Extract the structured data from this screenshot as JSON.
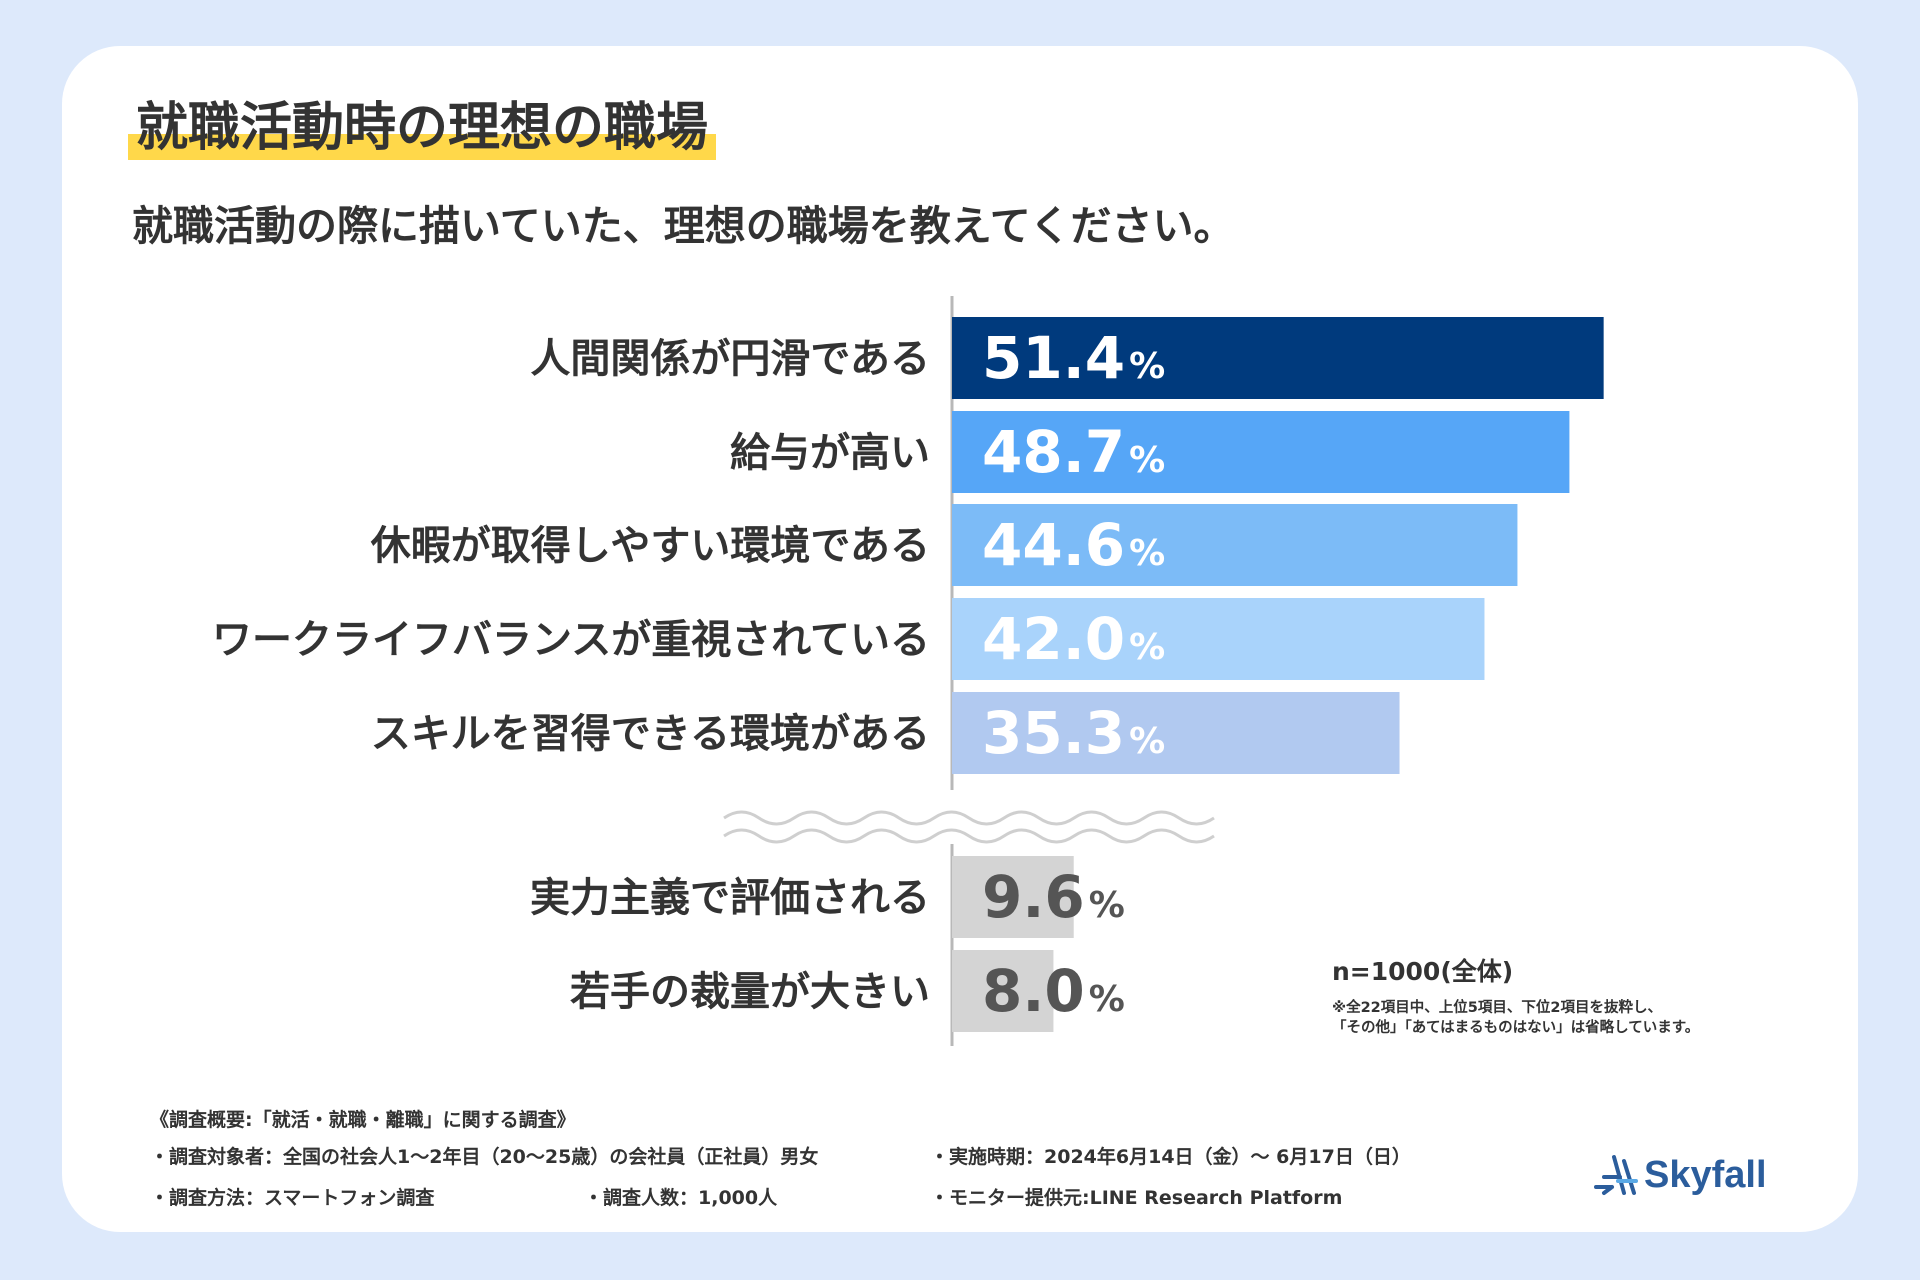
{
  "title": "就職活動時の理想の職場",
  "question": "就職活動の際に描いていた、理想の職場を教えてください。",
  "chart_data": {
    "type": "bar",
    "orientation": "horizontal",
    "unit": "%",
    "axis_break_after_index": 4,
    "categories": [
      "人間関係が円滑である",
      "給与が高い",
      "休暇が取得しやすい環境である",
      "ワークライフバランスが重視されている",
      "スキルを習得できる環境がある",
      "実力主義で評価される",
      "若手の裁量が大きい"
    ],
    "values": [
      51.4,
      48.7,
      44.6,
      42.0,
      35.3,
      9.6,
      8.0
    ],
    "value_labels": [
      "51.4",
      "48.7",
      "44.6",
      "42.0",
      "35.3",
      "9.6",
      "8.0"
    ],
    "colors": [
      "#003a7d",
      "#56a6f7",
      "#7cbbf7",
      "#a9d3fb",
      "#b1c9f0",
      "#d4d4d4",
      "#d4d4d4"
    ],
    "label_colors": [
      "#ffffff",
      "#ffffff",
      "#ffffff",
      "#ffffff",
      "#ffffff",
      "#555555",
      "#555555"
    ],
    "xlim": [
      0,
      59
    ]
  },
  "notes": {
    "n": "n=1000(全体)",
    "line1": "※全22項目中、上位5項目、下位2項目を抜粋し、",
    "line2": "「その他」「あてはまるものはない」は省略しています。"
  },
  "footer": {
    "heading": "《調査概要:「就活・就職・離職」に関する調査》",
    "target": "・調査対象者：全国の社会人1～2年目（20～25歳）の会社員（正社員）男女",
    "period": "・実施時期：2024年6月14日（金）～ 6月17日（日）",
    "method": "・調査方法：スマートフォン調査",
    "count": "・調査人数：1,000人",
    "provider": "・モニター提供元:LINE Research Platform"
  },
  "logo": {
    "text": "Skyfall",
    "color": "#2b5d9c"
  }
}
